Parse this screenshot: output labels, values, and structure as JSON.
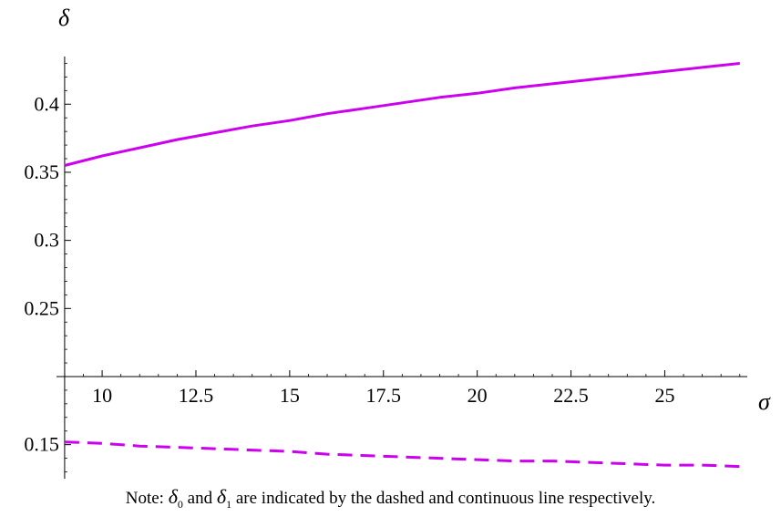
{
  "chart_data": {
    "type": "line",
    "xlabel": "σ",
    "ylabel": "δ",
    "xlim": [
      8.2,
      27.2
    ],
    "ylim": [
      0.125,
      0.435
    ],
    "x_ticks": [
      10,
      12.5,
      15,
      17.5,
      20,
      22.5,
      25
    ],
    "x_tick_labels": [
      "10",
      "12.5",
      "15",
      "17.5",
      "20",
      "22.5",
      "25"
    ],
    "y_ticks": [
      0.15,
      0.25,
      0.3,
      0.35,
      0.4
    ],
    "y_tick_labels": [
      "0.15",
      "0.25",
      "0.3",
      "0.35",
      "0.4"
    ],
    "x_axis_at_y": 0.2,
    "y_axis_at_x": 9,
    "grid": false,
    "legend": "none",
    "series": [
      {
        "style": "dashed",
        "color": "#cc00ee",
        "x": [
          9,
          10,
          11,
          12,
          13,
          14,
          15,
          16,
          17,
          18,
          19,
          20,
          21,
          22,
          23,
          24,
          25,
          26,
          27
        ],
        "y": [
          0.152,
          0.151,
          0.149,
          0.148,
          0.147,
          0.146,
          0.145,
          0.143,
          0.142,
          0.141,
          0.14,
          0.139,
          0.138,
          0.138,
          0.137,
          0.136,
          0.135,
          0.135,
          0.134
        ]
      },
      {
        "style": "solid",
        "color": "#cc00ee",
        "x": [
          9,
          10,
          11,
          12,
          13,
          14,
          15,
          16,
          17,
          18,
          19,
          20,
          21,
          22,
          23,
          24,
          25,
          26,
          27
        ],
        "y": [
          0.355,
          0.362,
          0.368,
          0.374,
          0.379,
          0.384,
          0.388,
          0.393,
          0.397,
          0.401,
          0.405,
          0.408,
          0.412,
          0.415,
          0.418,
          0.421,
          0.424,
          0.427,
          0.43
        ]
      }
    ]
  },
  "note": {
    "prefix": "Note: ",
    "sym0": "δ",
    "sub0": "0",
    "and": " and ",
    "sym1": "δ",
    "sub1": "1",
    "suffix": " are indicated by the dashed and continuous line respectively."
  }
}
